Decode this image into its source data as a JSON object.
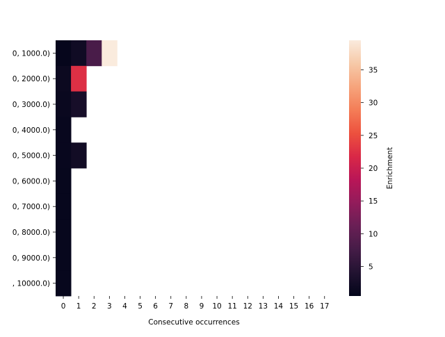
{
  "chart_data": {
    "type": "heatmap",
    "title": "",
    "xlabel": "Consecutive occurrences",
    "ylabel": "",
    "x": [
      "0",
      "1",
      "2",
      "3",
      "4",
      "5",
      "6",
      "7",
      "8",
      "9",
      "10",
      "11",
      "12",
      "13",
      "14",
      "15",
      "16",
      "17"
    ],
    "y": [
      ", 1000.0)",
      ", 2000.0)",
      ", 3000.0)",
      ", 4000.0)",
      ", 5000.0)",
      ", 6000.0)",
      ", 7000.0)",
      ", 8000.0)",
      ", 9000.0)",
      ", 10000.0)"
    ],
    "y_tick_labels": [
      "0, 1000.0)",
      "0, 2000.0)",
      "0, 3000.0)",
      "0, 4000.0)",
      "0, 5000.0)",
      "0, 6000.0)",
      "0, 7000.0)",
      "0, 8000.0)",
      "0, 9000.0)",
      ", 10000.0)"
    ],
    "cells": [
      {
        "row": 0,
        "col": 0,
        "value": 0.8
      },
      {
        "row": 0,
        "col": 1,
        "value": 2.0
      },
      {
        "row": 0,
        "col": 2,
        "value": 8.0
      },
      {
        "row": 0,
        "col": 3,
        "value": 39.5
      },
      {
        "row": 1,
        "col": 0,
        "value": 1.5
      },
      {
        "row": 1,
        "col": 1,
        "value": 22.5
      },
      {
        "row": 2,
        "col": 0,
        "value": 1.3
      },
      {
        "row": 2,
        "col": 1,
        "value": 2.8
      },
      {
        "row": 3,
        "col": 0,
        "value": 1.1
      },
      {
        "row": 4,
        "col": 0,
        "value": 1.1
      },
      {
        "row": 4,
        "col": 1,
        "value": 2.2
      },
      {
        "row": 5,
        "col": 0,
        "value": 1.0
      },
      {
        "row": 6,
        "col": 0,
        "value": 1.0
      },
      {
        "row": 7,
        "col": 0,
        "value": 1.0
      },
      {
        "row": 8,
        "col": 0,
        "value": 1.0
      },
      {
        "row": 9,
        "col": 0,
        "value": 1.0
      }
    ],
    "colorbar": {
      "label": "Enrichment",
      "vmin": 0.5,
      "vmax": 39.5,
      "ticks": [
        "5",
        "10",
        "15",
        "20",
        "25",
        "30",
        "35"
      ],
      "colormap": "rocket",
      "colors": [
        "#03051a",
        "#221331",
        "#451c47",
        "#691f55",
        "#921c5b",
        "#b91657",
        "#d92847",
        "#ed513e",
        "#f47d57",
        "#f6a47c",
        "#f6c9a8",
        "#faebdd"
      ]
    },
    "grid": false,
    "legend": "none"
  }
}
